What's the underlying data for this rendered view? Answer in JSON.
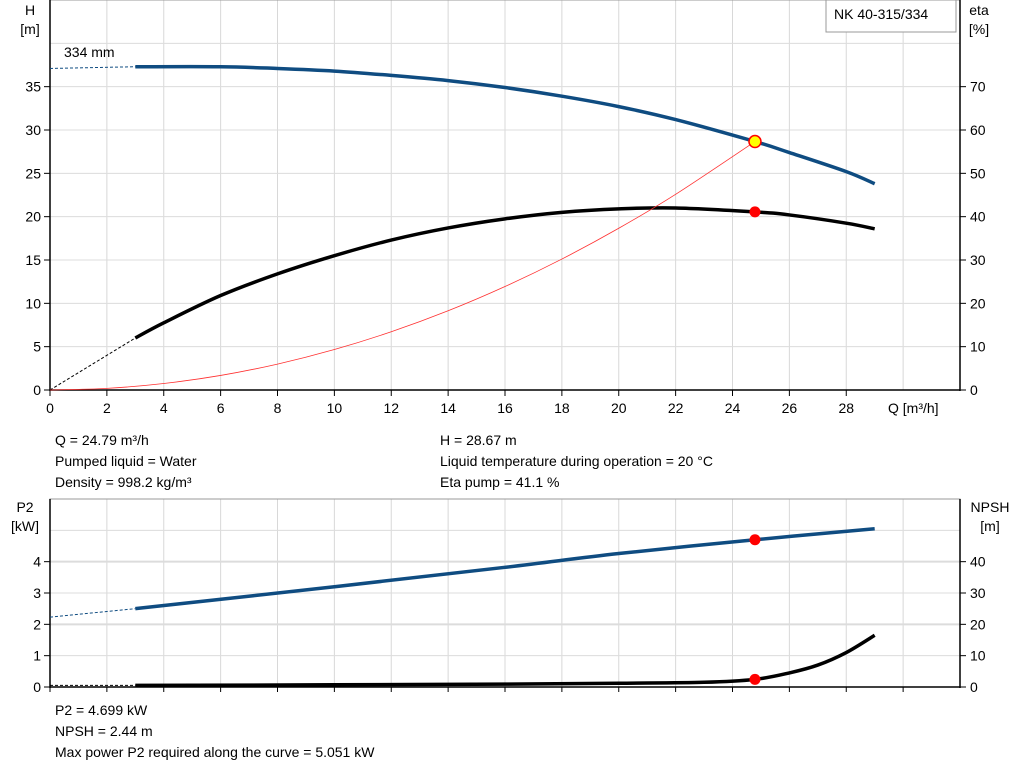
{
  "chart_data": [
    {
      "type": "line",
      "title_box": "NK 40-315/334",
      "curve_label": "334 mm",
      "xlabel": "Q [m³/h]",
      "ylabel_left": [
        "H",
        "[m]"
      ],
      "ylabel_right": [
        "eta",
        "[%]"
      ],
      "xlim": [
        0,
        32
      ],
      "ylim_left": [
        0,
        45
      ],
      "ylim_right": [
        0,
        90
      ],
      "grid": true,
      "x_ticks": [
        "0",
        "2",
        "4",
        "6",
        "8",
        "10",
        "12",
        "14",
        "16",
        "18",
        "20",
        "22",
        "24",
        "26",
        "28"
      ],
      "y_ticks_left": [
        "0",
        "5",
        "10",
        "15",
        "20",
        "25",
        "30",
        "35"
      ],
      "y_ticks_right": [
        "0",
        "10",
        "20",
        "30",
        "40",
        "50",
        "60",
        "70"
      ],
      "series": [
        {
          "key": "H",
          "axis": "left",
          "color": "#0f4c81",
          "extrapolated": [
            [
              0,
              37.1
            ],
            [
              3,
              37.3
            ]
          ],
          "points": [
            [
              3,
              37.3
            ],
            [
              6,
              37.3
            ],
            [
              8,
              37.1
            ],
            [
              10,
              36.8
            ],
            [
              12,
              36.3
            ],
            [
              14,
              35.7
            ],
            [
              16,
              34.9
            ],
            [
              18,
              33.9
            ],
            [
              20,
              32.7
            ],
            [
              22,
              31.2
            ],
            [
              24.79,
              28.67
            ],
            [
              26,
              27.4
            ],
            [
              28,
              25.2
            ],
            [
              29,
              23.8
            ]
          ]
        },
        {
          "key": "eta",
          "axis": "right",
          "color": "#000000",
          "extrapolated": [
            [
              0,
              0
            ],
            [
              3,
              12
            ]
          ],
          "points": [
            [
              3,
              12
            ],
            [
              4,
              15.5
            ],
            [
              6,
              21.8
            ],
            [
              8,
              26.8
            ],
            [
              10,
              31
            ],
            [
              12,
              34.6
            ],
            [
              14,
              37.4
            ],
            [
              16,
              39.5
            ],
            [
              18,
              41
            ],
            [
              20,
              41.8
            ],
            [
              22,
              42
            ],
            [
              24.79,
              41.1
            ],
            [
              26,
              40.4
            ],
            [
              28,
              38.5
            ],
            [
              29,
              37.2
            ]
          ]
        },
        {
          "key": "system",
          "axis": "left",
          "color": "#ff3030",
          "points": [
            [
              0,
              0
            ],
            [
              2,
              0.19
            ],
            [
              4,
              0.75
            ],
            [
              6,
              1.68
            ],
            [
              8,
              2.99
            ],
            [
              10,
              4.67
            ],
            [
              12,
              6.72
            ],
            [
              14,
              9.14
            ],
            [
              16,
              11.94
            ],
            [
              18,
              15.11
            ],
            [
              20,
              18.66
            ],
            [
              22,
              22.58
            ],
            [
              24.79,
              28.67
            ]
          ]
        }
      ],
      "duty_points": [
        {
          "series": "H",
          "x": 24.79,
          "y": 28.67,
          "fill": "#ffff00",
          "stroke": "#ff0000"
        },
        {
          "series": "eta",
          "x": 24.79,
          "y": 41.1,
          "fill": "#ff0000"
        }
      ]
    },
    {
      "type": "line",
      "ylabel_left": [
        "P2",
        "[kW]"
      ],
      "ylabel_right": [
        "NPSH",
        "[m]"
      ],
      "xlim": [
        0,
        32
      ],
      "ylim_left": [
        0,
        6
      ],
      "ylim_right": [
        0,
        60
      ],
      "grid": true,
      "y_ticks_left": [
        "0",
        "1",
        "2",
        "3",
        "4"
      ],
      "y_ticks_right": [
        "0",
        "10",
        "20",
        "30",
        "40"
      ],
      "series": [
        {
          "key": "P2",
          "axis": "left",
          "color": "#0f4c81",
          "extrapolated": [
            [
              0,
              2.23
            ],
            [
              3,
              2.5
            ]
          ],
          "points": [
            [
              3,
              2.5
            ],
            [
              10,
              3.2
            ],
            [
              16,
              3.82
            ],
            [
              20,
              4.26
            ],
            [
              24.79,
              4.699
            ],
            [
              29,
              5.05
            ]
          ]
        },
        {
          "key": "NPSH",
          "axis": "right",
          "color": "#000000",
          "extrapolated": [
            [
              0,
              0.5
            ],
            [
              3,
              0.5
            ]
          ],
          "points": [
            [
              3,
              0.5
            ],
            [
              10,
              0.7
            ],
            [
              16,
              0.9
            ],
            [
              20,
              1.2
            ],
            [
              23,
              1.5
            ],
            [
              24.79,
              2.44
            ],
            [
              26,
              4.5
            ],
            [
              27,
              7
            ],
            [
              28,
              11
            ],
            [
              29,
              16.5
            ]
          ]
        }
      ],
      "duty_points": [
        {
          "series": "P2",
          "x": 24.79,
          "y": 4.699,
          "fill": "#ff0000"
        },
        {
          "series": "NPSH",
          "x": 24.79,
          "y": 2.44,
          "fill": "#ff0000"
        }
      ]
    }
  ],
  "info_top": {
    "left": [
      "Q = 24.79 m³/h",
      "Pumped liquid = Water",
      "Density = 998.2 kg/m³"
    ],
    "right": [
      "H = 28.67 m",
      "Liquid temperature during operation = 20 °C",
      "Eta pump = 41.1 %"
    ]
  },
  "info_bottom": [
    "P2 = 4.699 kW",
    "NPSH = 2.44 m",
    "Max power P2 required along the curve = 5.051 kW"
  ]
}
